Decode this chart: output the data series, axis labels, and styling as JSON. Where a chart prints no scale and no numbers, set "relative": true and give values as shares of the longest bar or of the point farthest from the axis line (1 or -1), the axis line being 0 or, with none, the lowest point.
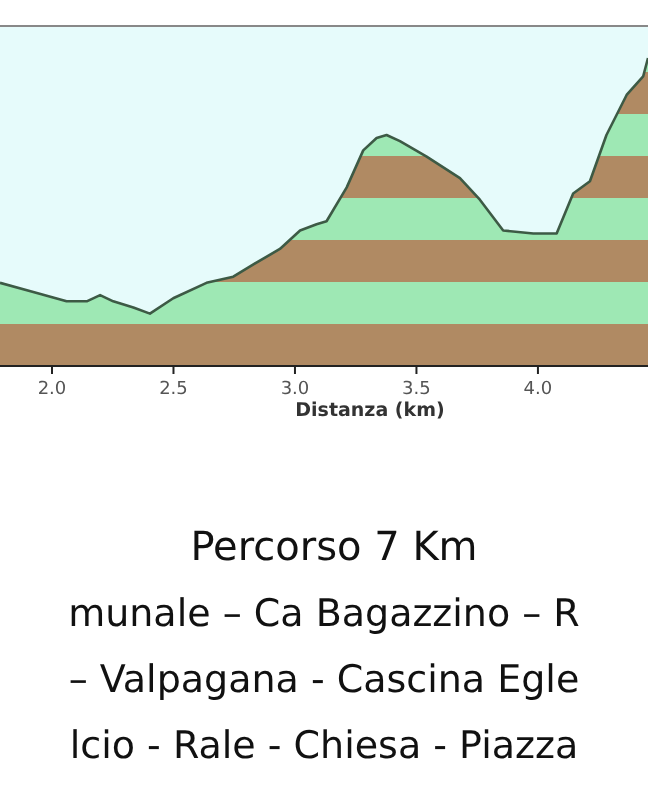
{
  "chart_data": {
    "type": "area",
    "title": "Percorso 7 Km",
    "xlabel": "Distanza (km)",
    "relative": true,
    "x": [
      1.786,
      1.923,
      2.06,
      2.143,
      2.198,
      2.252,
      2.335,
      2.403,
      2.499,
      2.636,
      2.746,
      2.829,
      2.938,
      3.021,
      3.089,
      3.13,
      3.213,
      3.281,
      3.336,
      3.377,
      3.432,
      3.542,
      3.679,
      3.761,
      3.857,
      3.981,
      4.077,
      4.145,
      4.214,
      4.282,
      4.365,
      4.433,
      4.453
    ],
    "series": [
      {
        "color": "#b08a63",
        "values": [
          0.27,
          0.24,
          0.21,
          0.21,
          0.23,
          0.21,
          0.19,
          0.17,
          0.22,
          0.27,
          0.29,
          0.33,
          0.38,
          0.44,
          0.46,
          0.47,
          0.58,
          0.7,
          0.74,
          0.75,
          0.73,
          0.68,
          0.61,
          0.54,
          0.44,
          0.43,
          0.43,
          0.56,
          0.6,
          0.75,
          0.88,
          0.94,
          1
        ]
      }
    ],
    "xlim": [
      1.786,
      4.453
    ],
    "xticks": [
      {
        "value": 2,
        "label": "2.0"
      },
      {
        "value": 2.5,
        "label": "2.5"
      },
      {
        "value": 3,
        "label": "3.0"
      },
      {
        "value": 3.5,
        "label": "3.5"
      },
      {
        "value": 4,
        "label": "4.0"
      }
    ],
    "grid": false,
    "annotations": [
      "munale – Ca Bagazzino – R",
      "– Valpagana - Cascina Egle",
      "lcio - Rale - Chiesa - Piazza"
    ]
  }
}
